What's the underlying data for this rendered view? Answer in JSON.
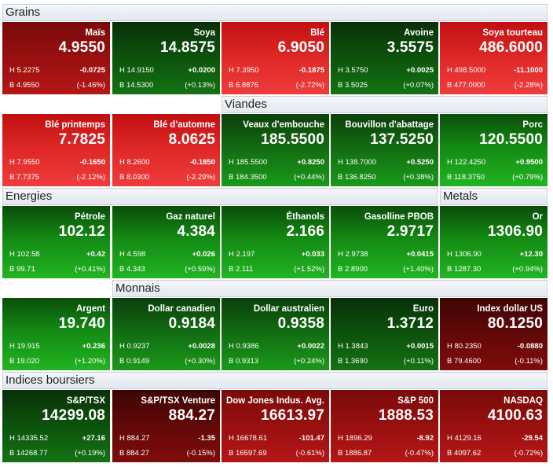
{
  "headers": {
    "grains": "Grains",
    "viandes": "Viandes",
    "energies": "Energies",
    "metals": "Metals",
    "monnais": "Monnais",
    "indices": "Indices boursiers"
  },
  "tiles": [
    {
      "name": "Maïs",
      "price": "4.9550",
      "high": "H 5.2275",
      "change": "-0.0725",
      "low": "B 4.9550",
      "pct": "(-1.46%)",
      "color": "#b81010"
    },
    {
      "name": "Soya",
      "price": "14.8575",
      "high": "H 14.9150",
      "change": "+0.0200",
      "low": "B 14.5300",
      "pct": "(+0.13%)",
      "color": "#0d560d"
    },
    {
      "name": "Blé",
      "price": "6.9050",
      "high": "H 7.3950",
      "change": "-0.1875",
      "low": "B 6.8875",
      "pct": "(-2.72%)",
      "color": "#e22a2a"
    },
    {
      "name": "Avoine",
      "price": "3.5575",
      "high": "H 3.5750",
      "change": "+0.0025",
      "low": "B 3.5025",
      "pct": "(+0.07%)",
      "color": "#0d560d"
    },
    {
      "name": "Soya tourteau",
      "price": "486.6000",
      "high": "H 498.5000",
      "change": "-11.1000",
      "low": "B 477.0000",
      "pct": "(-2.28%)",
      "color": "#e22a2a"
    },
    {
      "name": "Blé printemps",
      "price": "7.7825",
      "high": "H 7.9550",
      "change": "-0.1650",
      "low": "B 7.7375",
      "pct": "(-2.12%)",
      "color": "#e22a2a"
    },
    {
      "name": "Blé d'automne",
      "price": "8.0625",
      "high": "H 8.2600",
      "change": "-0.1850",
      "low": "B 8.0300",
      "pct": "(-2.29%)",
      "color": "#e22a2a"
    },
    {
      "name": "Veaux d'embouche",
      "price": "185.5500",
      "high": "H 185.5500",
      "change": "+0.8250",
      "low": "B 184.3500",
      "pct": "(+0.44%)",
      "color": "#137313"
    },
    {
      "name": "Bouvillon d'abattage",
      "price": "137.5250",
      "high": "H 138.7000",
      "change": "+0.5250",
      "low": "B 136.8250",
      "pct": "(+0.38%)",
      "color": "#137313"
    },
    {
      "name": "Porc",
      "price": "120.5500",
      "high": "H 122.4250",
      "change": "+0.9500",
      "low": "B 118.3750",
      "pct": "(+0.79%)",
      "color": "#138a13"
    },
    {
      "name": "Pétrole",
      "price": "102.12",
      "high": "H 102.58",
      "change": "+0.42",
      "low": "B 99.71",
      "pct": "(+0.41%)",
      "color": "#138a13"
    },
    {
      "name": "Gaz naturel",
      "price": "4.384",
      "high": "H 4.598",
      "change": "+0.026",
      "low": "B 4.343",
      "pct": "(+0.59%)",
      "color": "#138a13"
    },
    {
      "name": "Éthanols",
      "price": "2.166",
      "high": "H 2.197",
      "change": "+0.033",
      "low": "B 2.111",
      "pct": "(+1.52%)",
      "color": "#22b422"
    },
    {
      "name": "Gasolline PBOB",
      "price": "2.9717",
      "high": "H 2.9738",
      "change": "+0.0415",
      "low": "B 2.8900",
      "pct": "(+1.40%)",
      "color": "#22b422"
    },
    {
      "name": "Or",
      "price": "1306.90",
      "high": "H 1306.90",
      "change": "+12.30",
      "low": "B 1287.30",
      "pct": "(+0.94%)",
      "color": "#138a13"
    },
    {
      "name": "Argent",
      "price": "19.740",
      "high": "H 19.915",
      "change": "+0.236",
      "low": "B 19.020",
      "pct": "(+1.20%)",
      "color": "#22b422"
    },
    {
      "name": "Dollar canadien",
      "price": "0.9184",
      "high": "H 0.9237",
      "change": "+0.0028",
      "low": "B 0.9149",
      "pct": "(+0.30%)",
      "color": "#137313"
    },
    {
      "name": "Dollar australien",
      "price": "0.9358",
      "high": "H 0.9386",
      "change": "+0.0022",
      "low": "B 0.9313",
      "pct": "(+0.24%)",
      "color": "#137313"
    },
    {
      "name": "Euro",
      "price": "1.3712",
      "high": "H 1.3843",
      "change": "+0.0015",
      "low": "B 1.3690",
      "pct": "(+0.11%)",
      "color": "#0d560d"
    },
    {
      "name": "Index dollar US",
      "price": "80.1250",
      "high": "H 80.2350",
      "change": "-0.0880",
      "low": "B 79.4600",
      "pct": "(-0.11%)",
      "color": "#650808"
    },
    {
      "name": "S&P/TSX",
      "price": "14299.08",
      "high": "H 14335.52",
      "change": "+27.16",
      "low": "B 14268.77",
      "pct": "(+0.19%)",
      "color": "#0d560d"
    },
    {
      "name": "S&P/TSX Venture",
      "price": "884.27",
      "high": "H 884.27",
      "change": "-1.35",
      "low": "B 884.27",
      "pct": "(-0.15%)",
      "color": "#650808"
    },
    {
      "name": "Dow Jones Indus. Avg.",
      "price": "16613.97",
      "high": "H 16678.61",
      "change": "-101.47",
      "low": "B 16597.69",
      "pct": "(-0.61%)",
      "color": "#9c1010"
    },
    {
      "name": "S&P 500",
      "price": "1888.53",
      "high": "H 1896.29",
      "change": "-8.92",
      "low": "B 1886.87",
      "pct": "(-0.47%)",
      "color": "#9c1010"
    },
    {
      "name": "NASDAQ",
      "price": "4100.63",
      "high": "H 4129.16",
      "change": "-29.54",
      "low": "B 4097.62",
      "pct": "(-0.72%)",
      "color": "#9c1010"
    }
  ]
}
